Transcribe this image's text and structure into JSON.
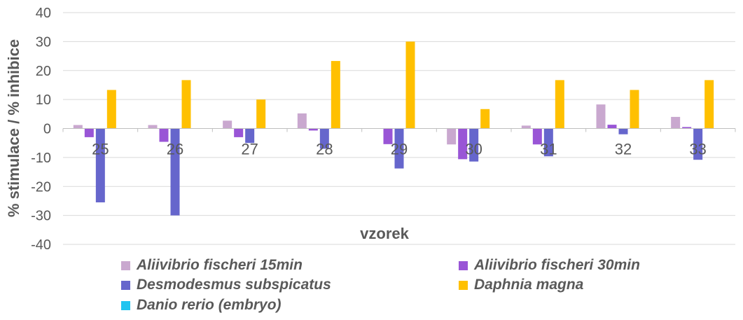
{
  "chart_data": {
    "type": "bar",
    "title": "",
    "xlabel": "vzorek",
    "ylabel": "% stimulace /  % inhibice",
    "ylim": [
      -40,
      40
    ],
    "yticks": [
      40,
      30,
      20,
      10,
      0,
      -10,
      -20,
      -30,
      -40
    ],
    "grid": true,
    "legend_position": "bottom",
    "categories": [
      "25",
      "26",
      "27",
      "28",
      "29",
      "30",
      "31",
      "32",
      "33"
    ],
    "series": [
      {
        "name": "Aliivibrio fischeri 15min",
        "color": "#C9A8CF",
        "values": [
          1.2,
          1.2,
          2.7,
          5.2,
          0,
          -5.5,
          1.0,
          8.3,
          4.0
        ]
      },
      {
        "name": "Aliivibrio fischeri 30min",
        "color": "#9955D6",
        "values": [
          -3.0,
          -4.6,
          -3.0,
          -0.7,
          -5.4,
          -10.6,
          -5.5,
          1.3,
          0.5
        ]
      },
      {
        "name": "Desmodesmus subspicatus",
        "color": "#6666CC",
        "values": [
          -25.5,
          -30.0,
          -5.0,
          -7.0,
          -13.8,
          -11.4,
          -9.6,
          -2.0,
          -10.8
        ]
      },
      {
        "name": "Daphnia magna",
        "color": "#FFC000",
        "values": [
          13.3,
          16.7,
          10.0,
          23.3,
          30.0,
          6.7,
          16.7,
          13.3,
          16.7
        ]
      },
      {
        "name": "Danio rerio (embryo)",
        "color": "#21C4F0",
        "values": [
          0,
          0,
          0,
          0,
          0,
          0,
          0,
          0,
          0
        ]
      }
    ]
  }
}
